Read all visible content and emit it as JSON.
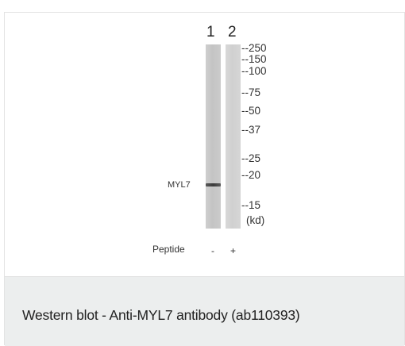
{
  "figure": {
    "lanes": [
      {
        "number": "1",
        "peptide": "-"
      },
      {
        "number": "2",
        "peptide": "+"
      }
    ],
    "markers": [
      "--250",
      "--150",
      "--100",
      "--75",
      "--50",
      "--37",
      "--25",
      "--20",
      "--15"
    ],
    "unit_label": "(kd)",
    "band_label": "MYL7",
    "peptide_label": "Peptide"
  },
  "caption": {
    "text": "Western blot - Anti-MYL7 antibody (ab110393)"
  }
}
